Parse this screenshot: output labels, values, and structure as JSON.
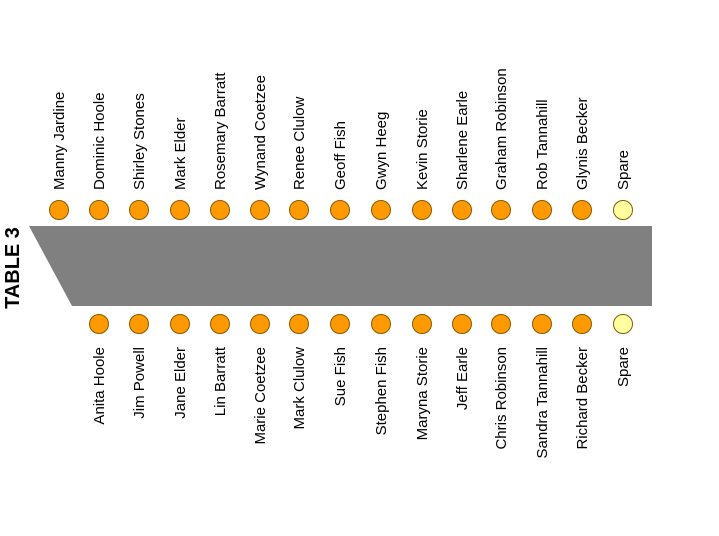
{
  "title": "TABLE 3",
  "colors": {
    "table": "#808080",
    "seat_taken": "#ff9900",
    "seat_spare": "#ffffa0"
  },
  "top_side": [
    {
      "name": "Manny Jardine",
      "status": "taken"
    },
    {
      "name": "Dominic Hoole",
      "status": "taken"
    },
    {
      "name": "Shirley Stones",
      "status": "taken"
    },
    {
      "name": "Mark Elder",
      "status": "taken"
    },
    {
      "name": "Rosemary Barratt",
      "status": "taken"
    },
    {
      "name": "Wynand Coetzee",
      "status": "taken"
    },
    {
      "name": "Renee Clulow",
      "status": "taken"
    },
    {
      "name": "Geoff Fish",
      "status": "taken"
    },
    {
      "name": "Gwyn Heeg",
      "status": "taken"
    },
    {
      "name": "Kevin Storie",
      "status": "taken"
    },
    {
      "name": "Sharlene Earle",
      "status": "taken"
    },
    {
      "name": "Graham Robinson",
      "status": "taken"
    },
    {
      "name": "Rob Tannahill",
      "status": "taken"
    },
    {
      "name": "Glynis Becker",
      "status": "taken"
    },
    {
      "name": "Spare",
      "status": "spare"
    }
  ],
  "bottom_side": [
    {
      "name": "Anita Hoole",
      "status": "taken"
    },
    {
      "name": "Jim Powell",
      "status": "taken"
    },
    {
      "name": "Jane Elder",
      "status": "taken"
    },
    {
      "name": "Lin Barratt",
      "status": "taken"
    },
    {
      "name": "Marie Coetzee",
      "status": "taken"
    },
    {
      "name": "Mark Clulow",
      "status": "taken"
    },
    {
      "name": "Sue Fish",
      "status": "taken"
    },
    {
      "name": "Stephen Fish",
      "status": "taken"
    },
    {
      "name": "Maryna Storie",
      "status": "taken"
    },
    {
      "name": "Jeff Earle",
      "status": "taken"
    },
    {
      "name": "Chris Robinson",
      "status": "taken"
    },
    {
      "name": "Sandra Tannahill",
      "status": "taken"
    },
    {
      "name": "Richard Becker",
      "status": "taken"
    },
    {
      "name": "Spare",
      "status": "spare"
    }
  ]
}
